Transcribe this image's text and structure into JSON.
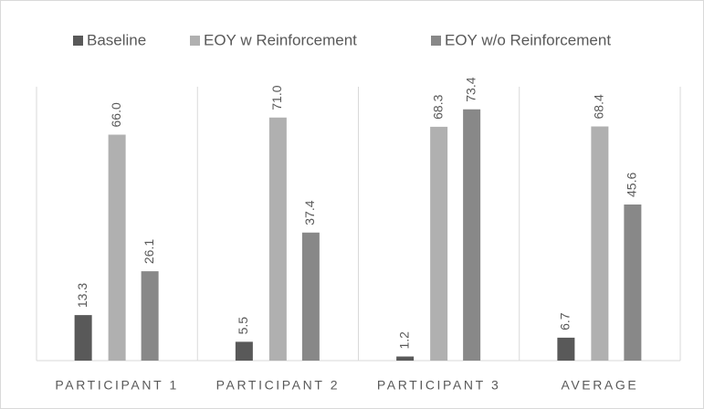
{
  "chart_data": {
    "type": "bar",
    "categories": [
      "PARTICIPANT 1",
      "PARTICIPANT 2",
      "PARTICIPANT 3",
      "AVERAGE"
    ],
    "series": [
      {
        "name": "Baseline",
        "color": "#595959",
        "values": [
          13.3,
          5.5,
          1.2,
          6.7
        ],
        "value_labels": [
          "13.3",
          "5.5",
          "1.2",
          "6.7"
        ]
      },
      {
        "name": "EOY w Reinforcement",
        "color": "#b0b0b0",
        "values": [
          66,
          71,
          68.3,
          68.4
        ],
        "value_labels": [
          "66.0",
          "71.0",
          "68.3",
          "68.4"
        ]
      },
      {
        "name": "EOY w/o Reinforcement",
        "color": "#888888",
        "values": [
          26.1,
          37.4,
          73.4,
          45.6
        ],
        "value_labels": [
          "26.1",
          "37.4",
          "73.4",
          "45.6"
        ]
      }
    ],
    "ylim": [
      0,
      80
    ],
    "legend": "top"
  }
}
